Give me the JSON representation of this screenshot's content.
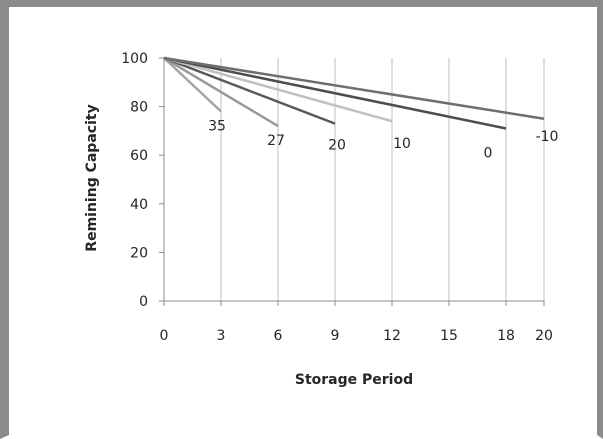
{
  "chart_data": {
    "type": "line",
    "title": "",
    "xlabel": "Storage Period",
    "ylabel": "Remining Capacity",
    "xlim": [
      0,
      20
    ],
    "ylim": [
      0,
      100
    ],
    "x_ticks": [
      "0",
      "3",
      "6",
      "9",
      "12",
      "15",
      "18",
      "20"
    ],
    "y_ticks": [
      "100",
      "80",
      "60",
      "40",
      "20",
      "0"
    ],
    "grid": "vertical",
    "legend": "none",
    "series": [
      {
        "name": "35",
        "x": [
          0,
          3
        ],
        "y": [
          100,
          78
        ],
        "color": "#a6a6a6"
      },
      {
        "name": "27",
        "x": [
          0,
          6
        ],
        "y": [
          100,
          72
        ],
        "color": "#9a9a9a"
      },
      {
        "name": "20",
        "x": [
          0,
          9
        ],
        "y": [
          100,
          73
        ],
        "color": "#595959"
      },
      {
        "name": "10",
        "x": [
          0,
          12
        ],
        "y": [
          100,
          74
        ],
        "color": "#c0c0c0"
      },
      {
        "name": "0",
        "x": [
          0,
          18
        ],
        "y": [
          100,
          71
        ],
        "color": "#4d4d4d"
      },
      {
        "name": "-10",
        "x": [
          0,
          20
        ],
        "y": [
          100,
          75
        ],
        "color": "#6e6e6e"
      }
    ]
  }
}
